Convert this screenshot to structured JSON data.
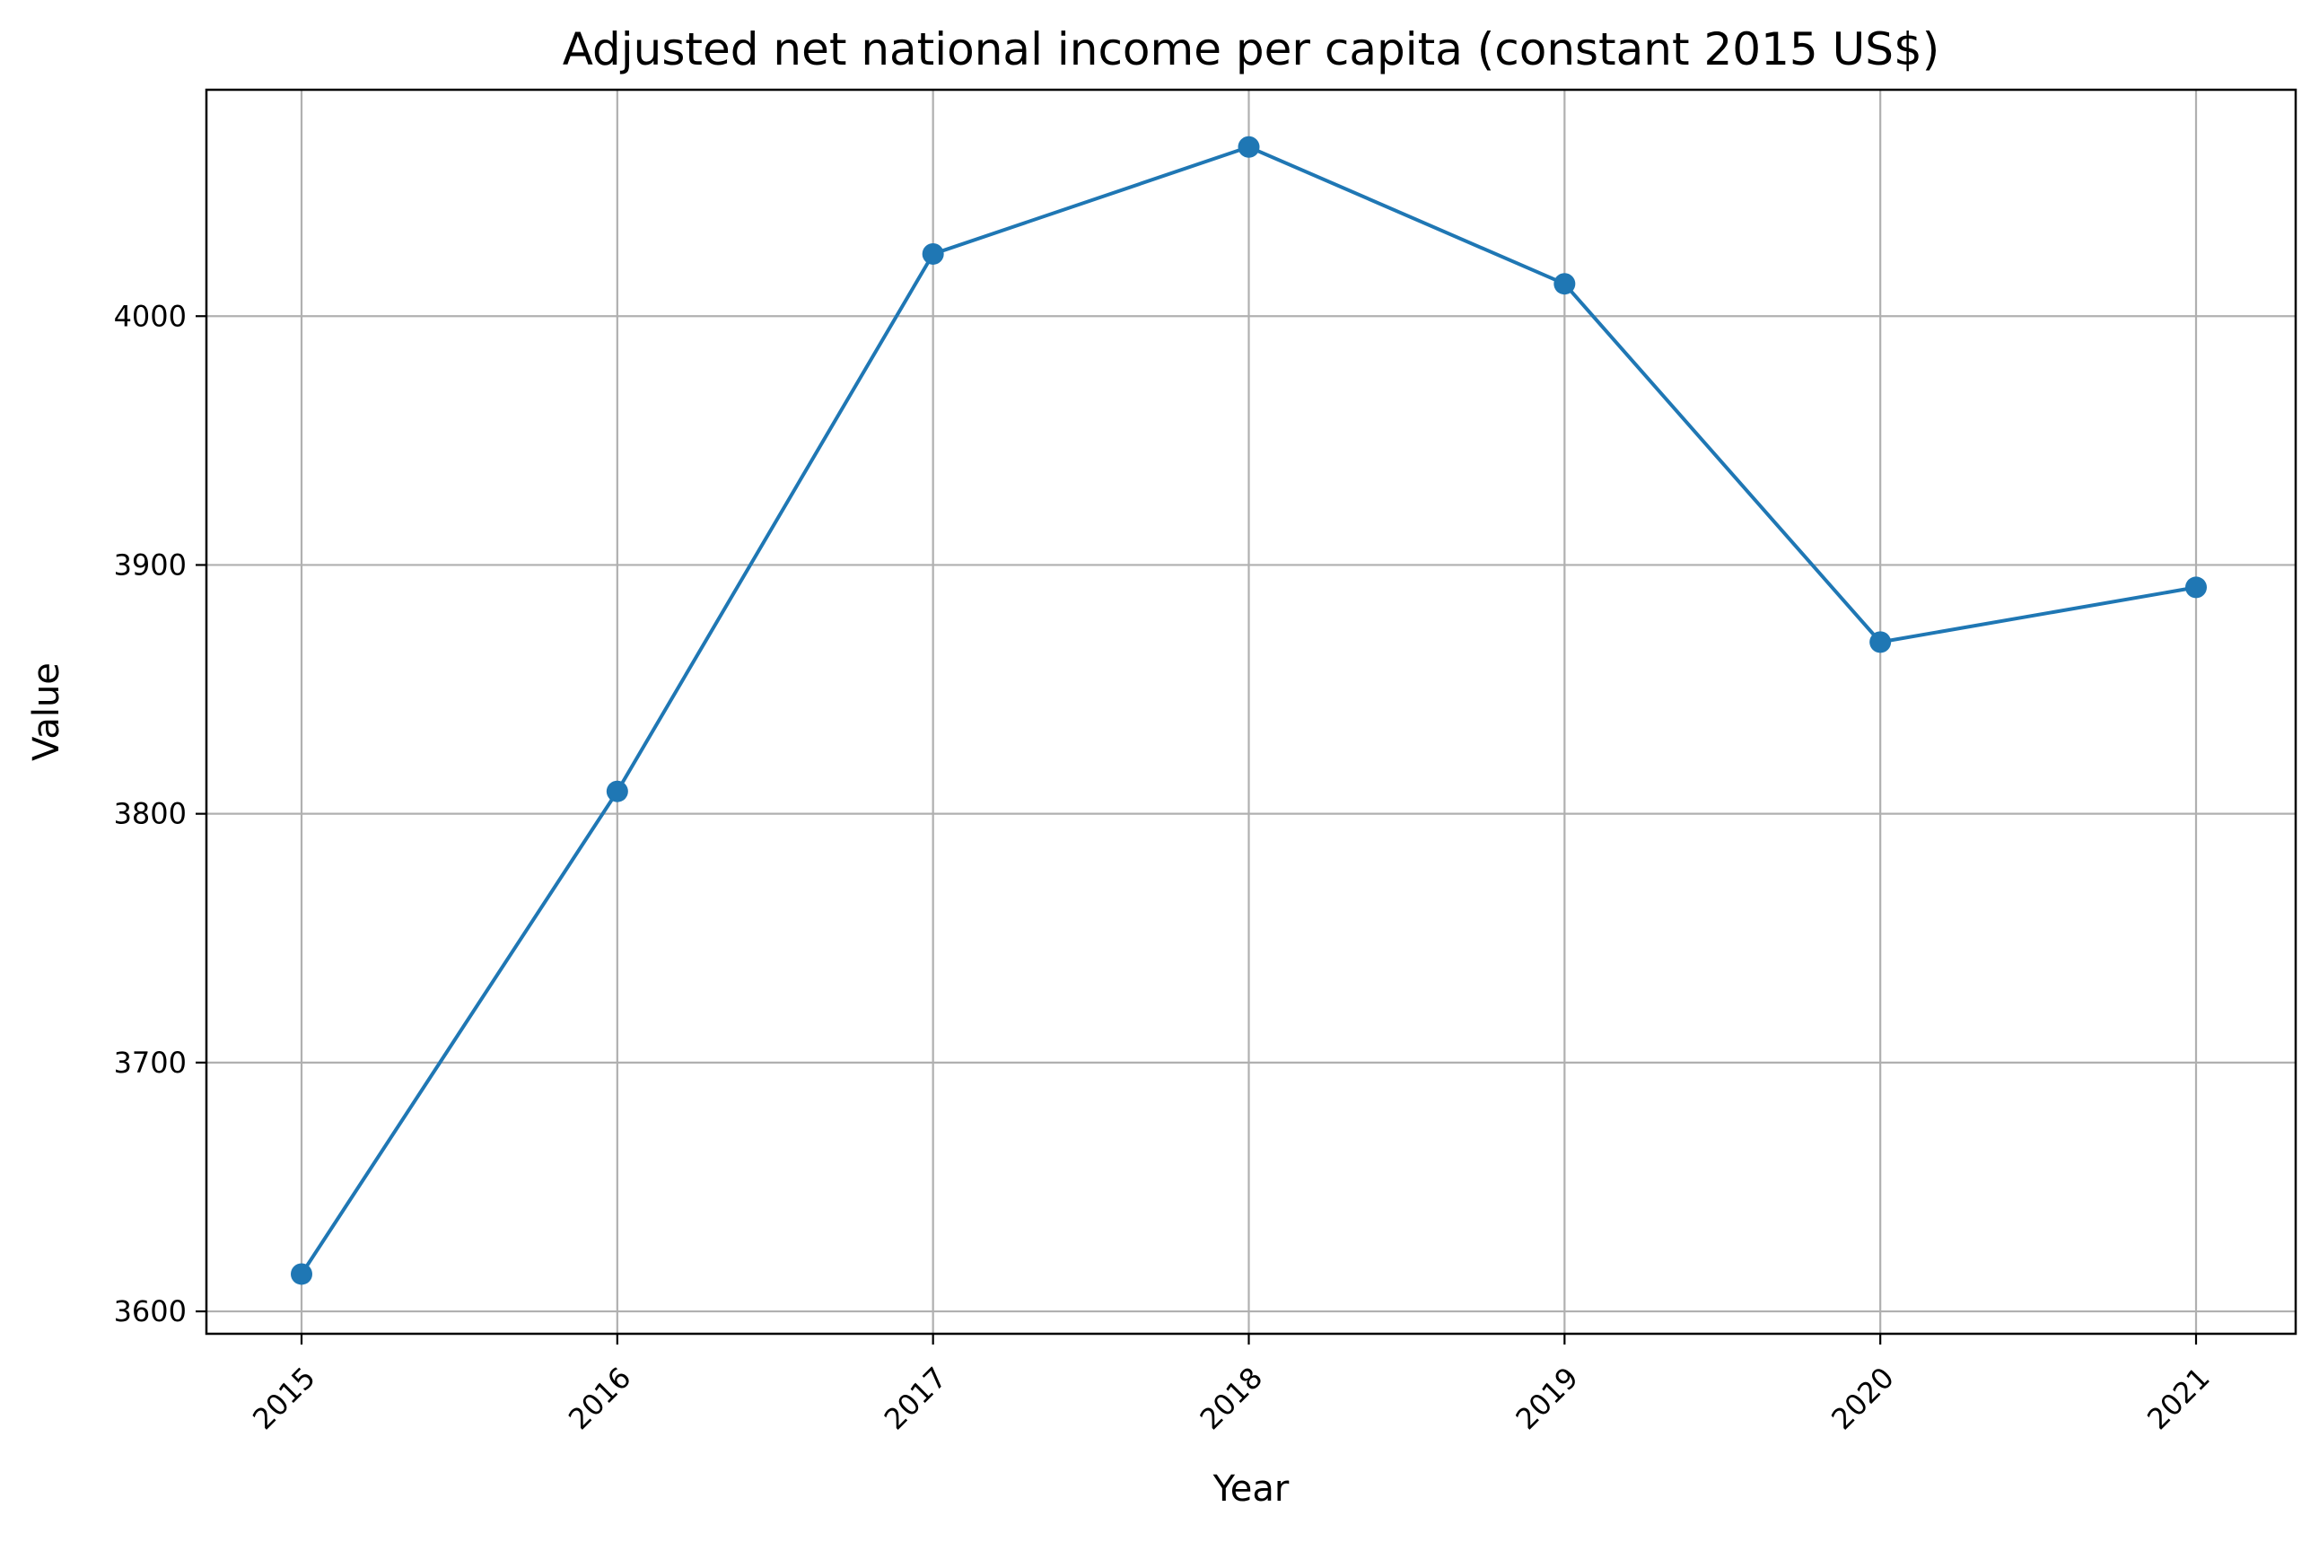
{
  "chart_data": {
    "type": "line",
    "title": "Adjusted net national income per capita (constant 2015 US$)",
    "xlabel": "Year",
    "ylabel": "Value",
    "x": [
      "2015",
      "2016",
      "2017",
      "2018",
      "2019",
      "2020",
      "2021"
    ],
    "series": [
      {
        "values": [
          3615,
          3809,
          4025,
          4068,
          4013,
          3869,
          3891
        ]
      }
    ],
    "yticks": [
      3600,
      3700,
      3800,
      3900,
      4000
    ],
    "ylim": [
      3591,
      4091
    ],
    "grid": true,
    "line_color": "#1f77b4",
    "grid_color": "#b0b0b0"
  }
}
